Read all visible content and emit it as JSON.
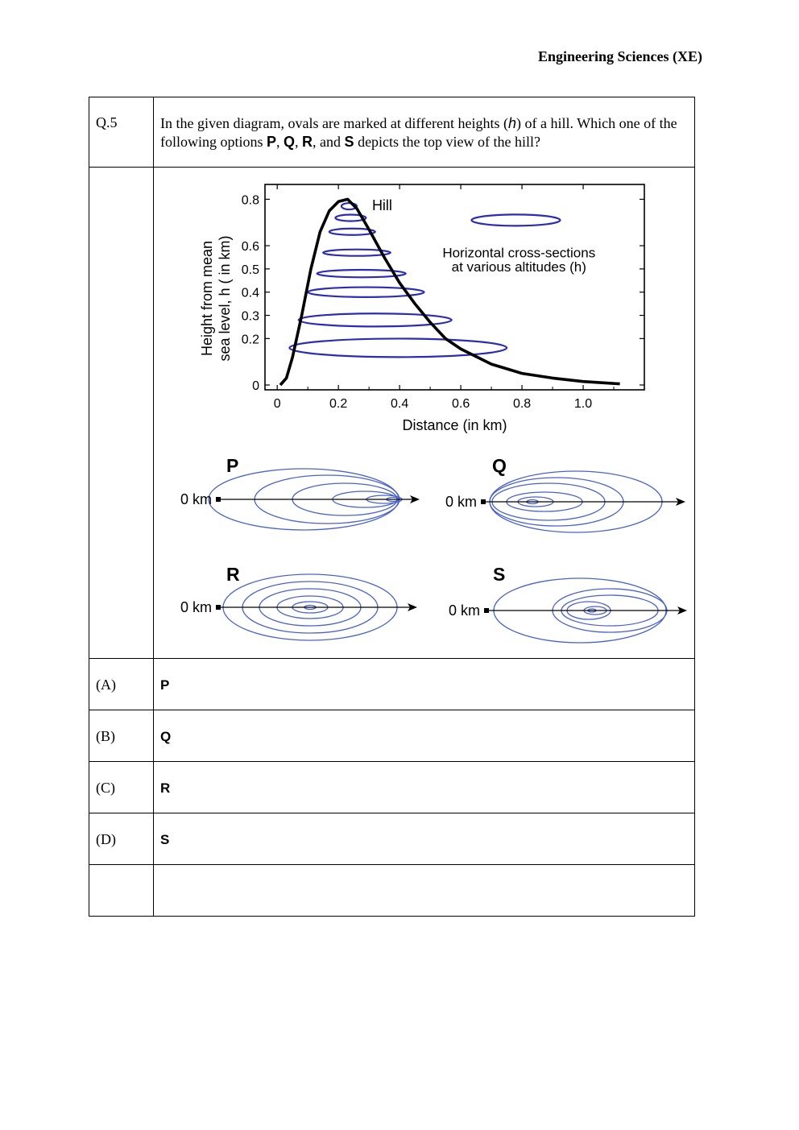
{
  "header": {
    "subject": "Engineering Sciences (XE)"
  },
  "question": {
    "number": "Q.5",
    "text_part1": "In the given diagram, ovals are marked at different heights (",
    "text_h": "h",
    "text_part2": ") of a hill. Which one of the following options ",
    "opt_P": "P",
    "sep1": ", ",
    "opt_Q": "Q",
    "sep2": ", ",
    "opt_R": "R",
    "sep3": ", and ",
    "opt_S": "S",
    "text_part3": " depicts the top view of the hill?"
  },
  "chart_data": {
    "type": "line",
    "title": "",
    "xlabel": "Distance (in km)",
    "ylabel_line1": "Height from mean",
    "ylabel_line2": "sea level, h ( in km)",
    "xlim": [
      -0.04,
      1.2
    ],
    "ylim": [
      0,
      0.85
    ],
    "x_ticks": [
      "0",
      "0.2",
      "0.4",
      "0.6",
      "0.8",
      "1.0"
    ],
    "y_ticks": [
      "0",
      "0.2",
      "0.3",
      "0.4",
      "0.5",
      "0.6",
      "0.8"
    ],
    "y_tick_values": [
      0,
      0.2,
      0.3,
      0.4,
      0.5,
      0.6,
      0.8
    ],
    "series": [
      {
        "name": "Hill",
        "x": [
          0.01,
          0.03,
          0.05,
          0.08,
          0.11,
          0.14,
          0.17,
          0.2,
          0.23,
          0.26,
          0.3,
          0.35,
          0.4,
          0.45,
          0.5,
          0.55,
          0.6,
          0.7,
          0.8,
          0.9,
          1.0,
          1.12
        ],
        "y": [
          0.0,
          0.03,
          0.12,
          0.3,
          0.5,
          0.66,
          0.75,
          0.79,
          0.8,
          0.76,
          0.67,
          0.55,
          0.44,
          0.35,
          0.27,
          0.2,
          0.155,
          0.09,
          0.05,
          0.03,
          0.015,
          0.005
        ]
      }
    ],
    "cross_sections": [
      {
        "h": 0.16,
        "x_left": 0.04,
        "x_right": 0.75
      },
      {
        "h": 0.28,
        "x_left": 0.07,
        "x_right": 0.57
      },
      {
        "h": 0.4,
        "x_left": 0.1,
        "x_right": 0.48
      },
      {
        "h": 0.48,
        "x_left": 0.13,
        "x_right": 0.42
      },
      {
        "h": 0.57,
        "x_left": 0.15,
        "x_right": 0.37
      },
      {
        "h": 0.66,
        "x_left": 0.17,
        "x_right": 0.32
      },
      {
        "h": 0.72,
        "x_left": 0.19,
        "x_right": 0.29
      },
      {
        "h": 0.77,
        "x_left": 0.21,
        "x_right": 0.26
      }
    ],
    "annotations": {
      "hill_label": "Hill",
      "legend_line1": "Horizontal cross-sections",
      "legend_line2": "at various altitudes (h)"
    },
    "colors": {
      "curve": "#000000",
      "ovals": "#2b2bb5"
    }
  },
  "top_views": {
    "origin_label": "0 km",
    "P": "P",
    "Q": "Q",
    "R": "R",
    "S": "S",
    "color": "#4a63c9"
  },
  "options": [
    {
      "num": "(A)",
      "value": "P"
    },
    {
      "num": "(B)",
      "value": "Q"
    },
    {
      "num": "(C)",
      "value": "R"
    },
    {
      "num": "(D)",
      "value": "S"
    }
  ]
}
